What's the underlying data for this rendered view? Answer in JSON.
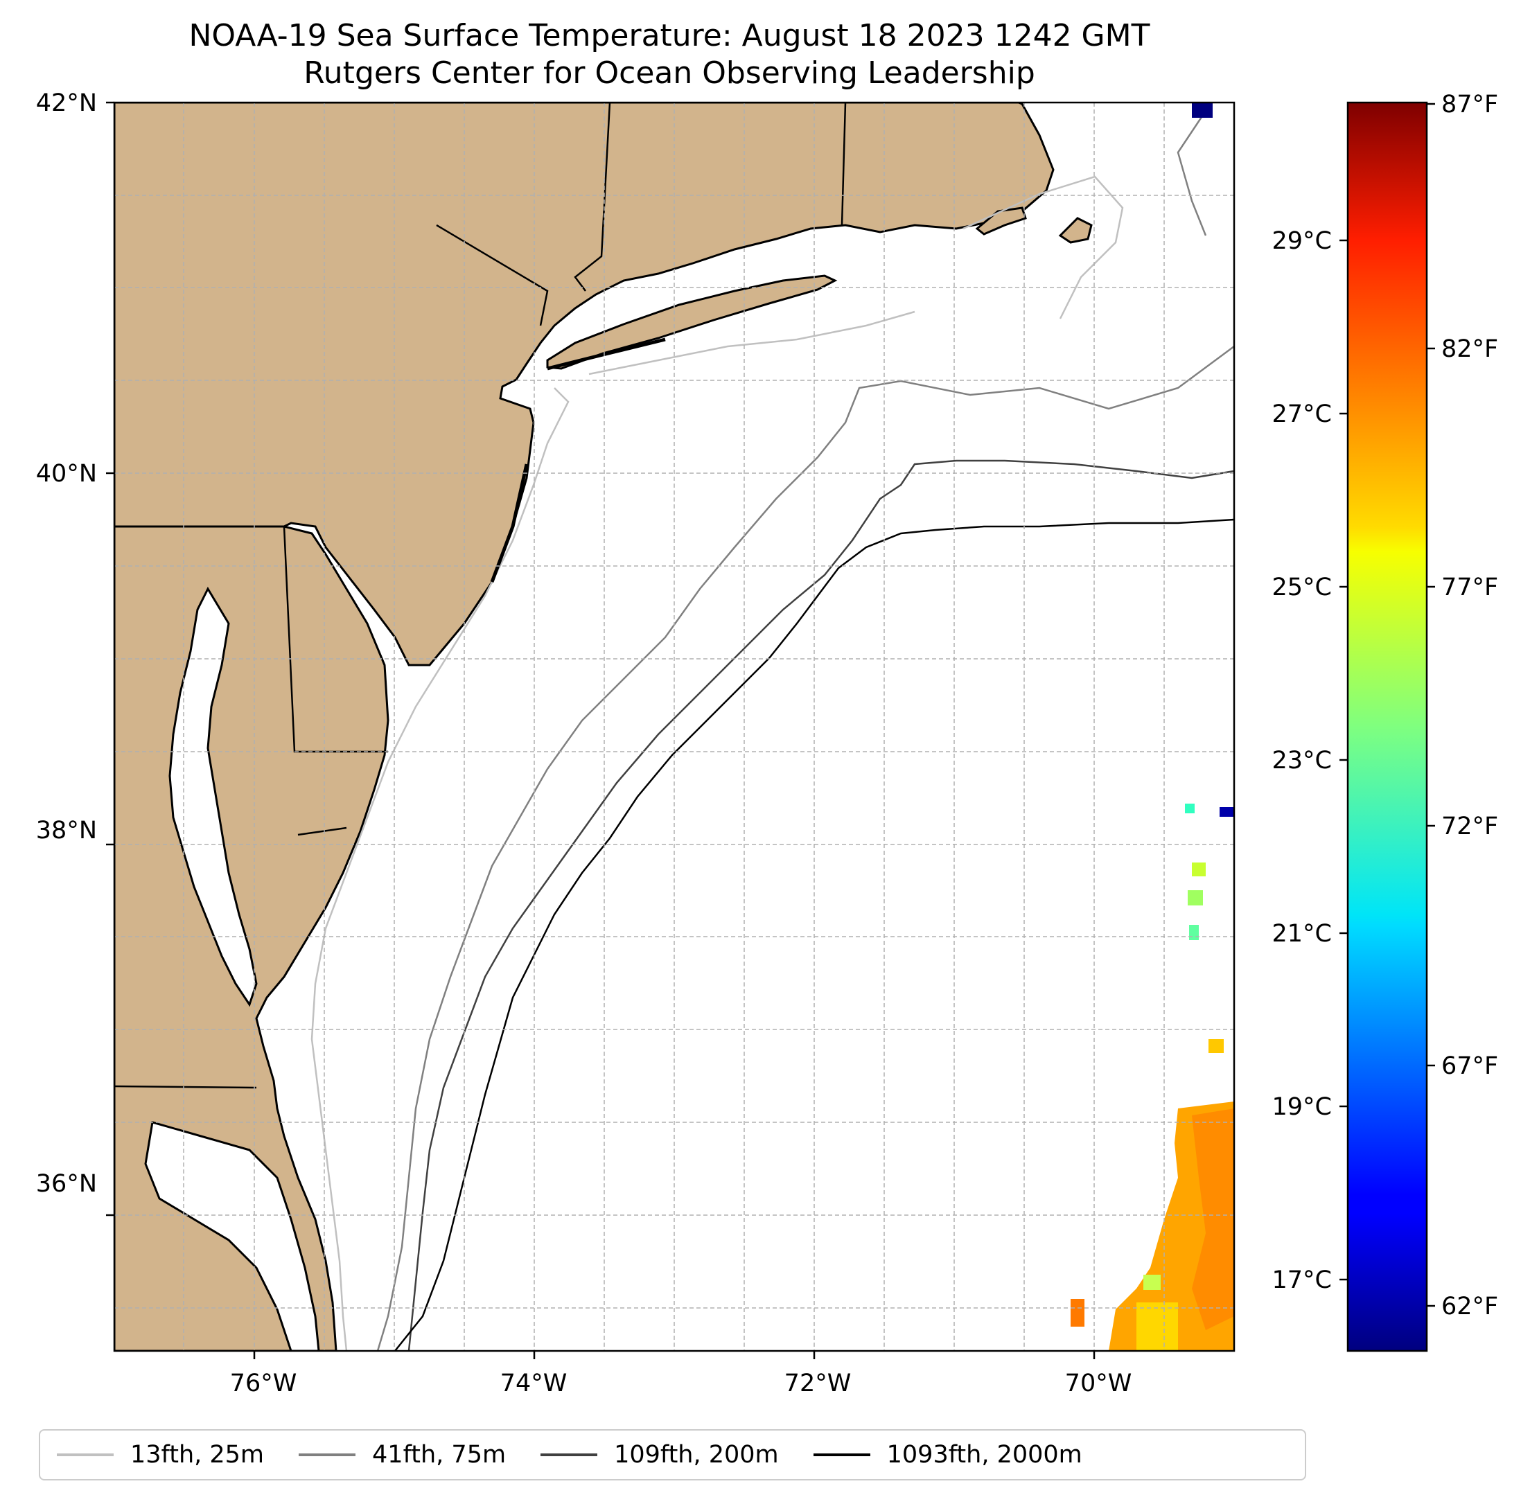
{
  "title": "NOAA-19 Sea Surface Temperature: August 18 2023 1242 GMT",
  "subtitle": "Rutgers Center for Ocean Observing Leadership",
  "map": {
    "lon_range": [
      -77,
      -69
    ],
    "lat_range": [
      35.1,
      42
    ],
    "lon_ticks": [
      {
        "value": -76,
        "label": "76°W"
      },
      {
        "value": -74,
        "label": "74°W"
      },
      {
        "value": -72,
        "label": "72°W"
      },
      {
        "value": -70,
        "label": "70°W"
      }
    ],
    "lat_ticks": [
      {
        "value": 42,
        "label": "42°N"
      },
      {
        "value": 40,
        "label": "40°N"
      },
      {
        "value": 38,
        "label": "38°N"
      },
      {
        "value": 36,
        "label": "36°N"
      }
    ],
    "grid": "dashed",
    "land_color": "#d2b48c",
    "sst_patches": "warm water (~79-84°F) in the southeast corner near 69-70°W, 35-37°N; scattered small patches along the eastern edge"
  },
  "colorbar": {
    "colormap": "jet",
    "celsius_ticks": [
      "29°C",
      "27°C",
      "25°C",
      "23°C",
      "21°C",
      "19°C",
      "17°C"
    ],
    "fahrenheit_ticks": [
      "87°F",
      "82°F",
      "77°F",
      "72°F",
      "67°F",
      "62°F"
    ]
  },
  "legend": {
    "placement": "bottom",
    "entries": [
      {
        "label": "13fth, 25m",
        "color": "#c0c0c0"
      },
      {
        "label": "41fth, 75m",
        "color": "#808080"
      },
      {
        "label": "109fth, 200m",
        "color": "#404040"
      },
      {
        "label": "1093fth, 2000m",
        "color": "#000000"
      }
    ]
  }
}
